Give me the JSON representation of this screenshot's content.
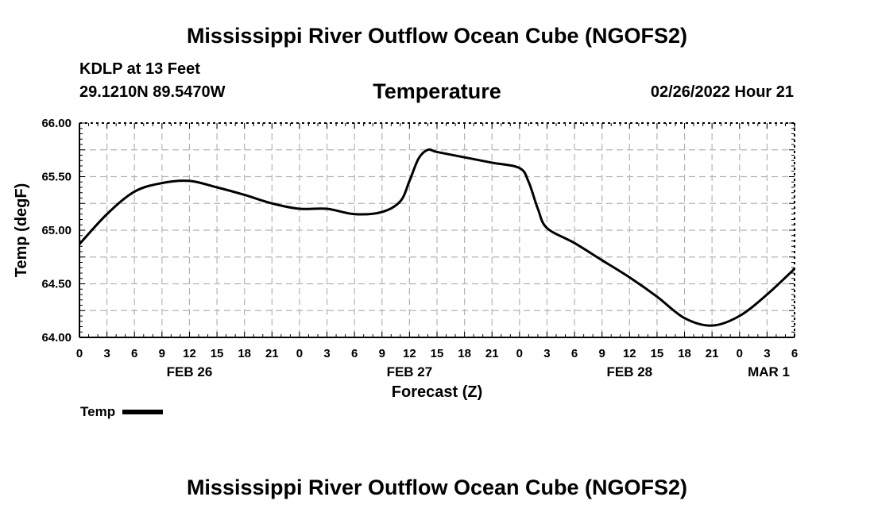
{
  "header": {
    "title": "Mississippi River Outflow Ocean Cube (NGOFS2)",
    "station": "KDLP at 13 Feet",
    "coordinates": "29.1210N  89.5470W",
    "variable": "Temperature",
    "datetime": "02/26/2022 Hour 21"
  },
  "footer": {
    "title": "Mississippi River Outflow Ocean Cube (NGOFS2)"
  },
  "legend": {
    "label": "Temp"
  },
  "chart_data": {
    "type": "line",
    "title": "Temperature",
    "xlabel": "Forecast (Z)",
    "ylabel": "Temp (degF)",
    "xlim": [
      0,
      78
    ],
    "ylim": [
      64.0,
      66.0
    ],
    "grid": true,
    "x_unit": "hours since FEB 26 00Z",
    "yticks": [
      "64.00",
      "64.50",
      "65.00",
      "65.50",
      "66.00"
    ],
    "xticks": [
      "0",
      "3",
      "6",
      "9",
      "12",
      "15",
      "18",
      "21",
      "0",
      "3",
      "6",
      "9",
      "12",
      "15",
      "18",
      "21",
      "0",
      "3",
      "6",
      "9",
      "12",
      "15",
      "18",
      "21",
      "0",
      "3",
      "6"
    ],
    "day_labels": [
      {
        "label": "FEB 26",
        "hour": 12
      },
      {
        "label": "FEB 27",
        "hour": 36
      },
      {
        "label": "FEB 28",
        "hour": 60
      },
      {
        "label": "MAR 1",
        "hour": 78
      }
    ],
    "series": [
      {
        "name": "Temp",
        "color": "#000000",
        "x": [
          0,
          3,
          6,
          9,
          12,
          15,
          18,
          21,
          24,
          27,
          30,
          33,
          35,
          36,
          37,
          38,
          39,
          42,
          45,
          48,
          49,
          50,
          51,
          54,
          57,
          60,
          63,
          66,
          69,
          72,
          75,
          78
        ],
        "y": [
          64.87,
          65.15,
          65.36,
          65.44,
          65.46,
          65.4,
          65.33,
          65.25,
          65.2,
          65.2,
          65.15,
          65.17,
          65.27,
          65.46,
          65.67,
          65.75,
          65.73,
          65.68,
          65.63,
          65.58,
          65.45,
          65.2,
          65.02,
          64.88,
          64.72,
          64.56,
          64.38,
          64.18,
          64.11,
          64.2,
          64.4,
          64.64
        ]
      }
    ]
  }
}
